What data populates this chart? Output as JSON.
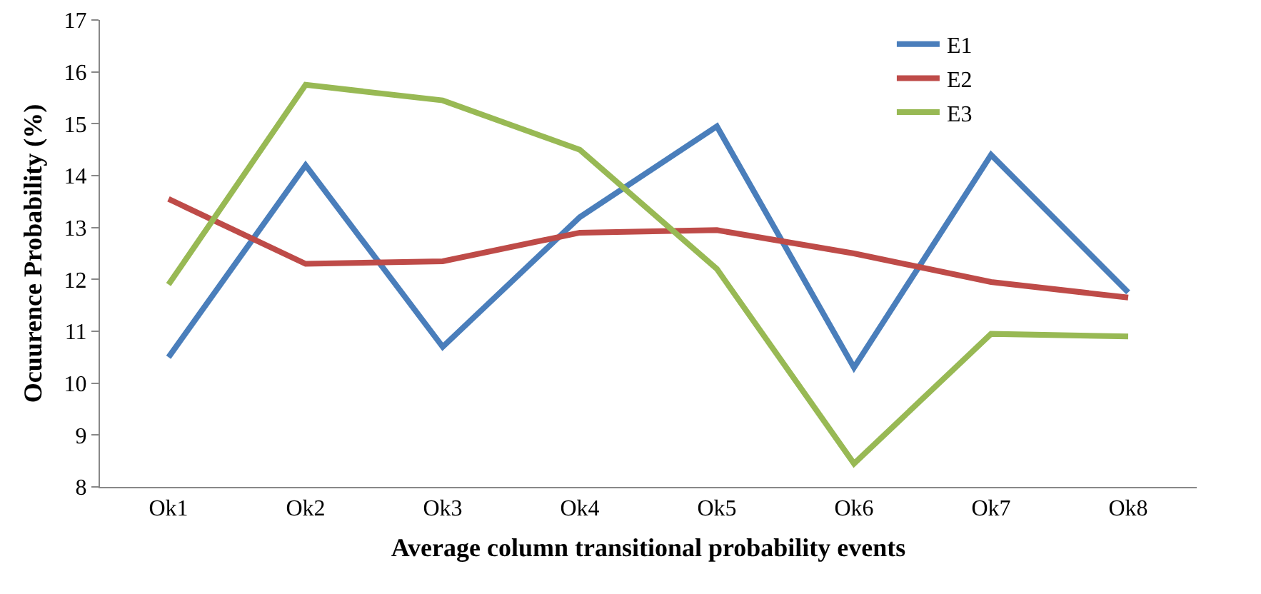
{
  "chart_data": {
    "type": "line",
    "xlabel": "Average column transitional probability events",
    "ylabel": "Ocuurence Probability (%)",
    "categories": [
      "Ok1",
      "Ok2",
      "Ok3",
      "Ok4",
      "Ok5",
      "Ok6",
      "Ok7",
      "Ok8"
    ],
    "series": [
      {
        "name": "E1",
        "color": "#4a7ebb",
        "values": [
          10.5,
          14.2,
          10.7,
          13.2,
          14.95,
          10.3,
          14.4,
          11.75
        ]
      },
      {
        "name": "E2",
        "color": "#be4b48",
        "values": [
          13.55,
          12.3,
          12.35,
          12.9,
          12.95,
          12.5,
          11.95,
          11.65
        ]
      },
      {
        "name": "E3",
        "color": "#98b954",
        "values": [
          11.9,
          15.75,
          15.45,
          14.5,
          12.2,
          8.45,
          10.95,
          10.9
        ]
      }
    ],
    "ylim": [
      8,
      17
    ],
    "yticks": [
      8,
      9,
      10,
      11,
      12,
      13,
      14,
      15,
      16,
      17
    ],
    "grid": false,
    "legend": "top right",
    "marker": "none",
    "line_style": "solid"
  }
}
